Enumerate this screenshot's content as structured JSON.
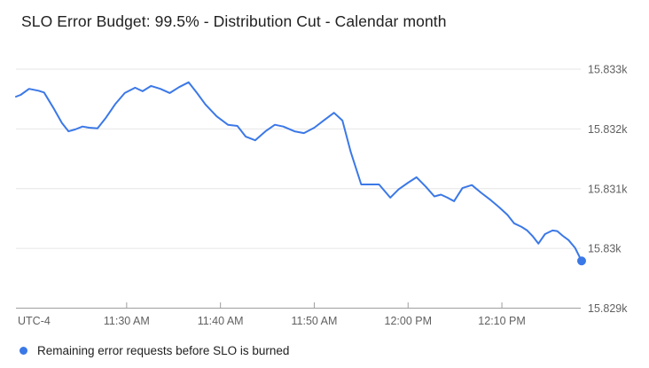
{
  "title": "SLO Error Budget: 99.5% - Distribution Cut - Calendar month",
  "legend": {
    "label": "Remaining error requests before SLO is burned"
  },
  "axes": {
    "timezone_label": "UTC-4",
    "x_ticks": [
      {
        "t": 690,
        "label": "11:30 AM"
      },
      {
        "t": 700,
        "label": "11:40 AM"
      },
      {
        "t": 710,
        "label": "11:50 AM"
      },
      {
        "t": 720,
        "label": "12:00 PM"
      },
      {
        "t": 730,
        "label": "12:10 PM"
      }
    ],
    "y_ticks": [
      {
        "v": 15833,
        "label": "15.833k"
      },
      {
        "v": 15832,
        "label": "15.832k"
      },
      {
        "v": 15831,
        "label": "15.831k"
      },
      {
        "v": 15830,
        "label": "15.83k"
      },
      {
        "v": 15829,
        "label": "15.829k"
      }
    ]
  },
  "colors": {
    "series": "#3b78e7",
    "grid": "#e6e6e6",
    "axis_line": "#9e9e9e",
    "tick": "#9e9e9e",
    "text_primary": "#212121",
    "text_secondary": "#616161"
  },
  "chart_data": {
    "type": "line",
    "title": "SLO Error Budget: 99.5% - Distribution Cut - Calendar month",
    "xlabel": "time (UTC-4)",
    "ylabel": "Remaining error requests",
    "x_unit": "minutes-since-midnight",
    "xlim": [
      678.2,
      738.5
    ],
    "ylim": [
      15829,
      15833
    ],
    "grid": "horizontal",
    "legend_position": "bottom",
    "y_axis_side": "right",
    "series": [
      {
        "name": "Remaining error requests before SLO is burned",
        "endpoint_dot": true,
        "points": [
          [
            678.2,
            15832.54
          ],
          [
            678.7,
            15832.57
          ],
          [
            679.6,
            15832.67
          ],
          [
            680.6,
            15832.64
          ],
          [
            681.2,
            15832.61
          ],
          [
            682.2,
            15832.35
          ],
          [
            683.1,
            15832.1
          ],
          [
            683.8,
            15831.96
          ],
          [
            684.5,
            15831.99
          ],
          [
            685.3,
            15832.04
          ],
          [
            686.0,
            15832.02
          ],
          [
            686.9,
            15832.01
          ],
          [
            687.8,
            15832.19
          ],
          [
            688.8,
            15832.42
          ],
          [
            689.8,
            15832.6
          ],
          [
            690.9,
            15832.69
          ],
          [
            691.7,
            15832.63
          ],
          [
            692.6,
            15832.72
          ],
          [
            693.6,
            15832.67
          ],
          [
            694.6,
            15832.6
          ],
          [
            695.6,
            15832.7
          ],
          [
            696.6,
            15832.78
          ],
          [
            697.5,
            15832.6
          ],
          [
            698.4,
            15832.41
          ],
          [
            699.6,
            15832.21
          ],
          [
            700.8,
            15832.07
          ],
          [
            701.8,
            15832.05
          ],
          [
            702.7,
            15831.87
          ],
          [
            703.7,
            15831.81
          ],
          [
            704.8,
            15831.96
          ],
          [
            705.8,
            15832.07
          ],
          [
            706.7,
            15832.04
          ],
          [
            707.9,
            15831.96
          ],
          [
            708.9,
            15831.93
          ],
          [
            710.0,
            15832.02
          ],
          [
            711.0,
            15832.14
          ],
          [
            712.1,
            15832.27
          ],
          [
            713.0,
            15832.14
          ],
          [
            713.9,
            15831.61
          ],
          [
            715.0,
            15831.07
          ],
          [
            715.9,
            15831.07
          ],
          [
            716.9,
            15831.07
          ],
          [
            717.5,
            15830.96
          ],
          [
            718.1,
            15830.85
          ],
          [
            719.0,
            15830.99
          ],
          [
            720.0,
            15831.1
          ],
          [
            720.9,
            15831.19
          ],
          [
            721.9,
            15831.03
          ],
          [
            722.8,
            15830.87
          ],
          [
            723.5,
            15830.9
          ],
          [
            724.2,
            15830.85
          ],
          [
            724.9,
            15830.79
          ],
          [
            725.8,
            15831.01
          ],
          [
            726.8,
            15831.06
          ],
          [
            727.8,
            15830.93
          ],
          [
            728.8,
            15830.81
          ],
          [
            729.7,
            15830.69
          ],
          [
            730.6,
            15830.56
          ],
          [
            731.3,
            15830.42
          ],
          [
            732.1,
            15830.36
          ],
          [
            732.7,
            15830.3
          ],
          [
            733.3,
            15830.2
          ],
          [
            733.9,
            15830.08
          ],
          [
            734.6,
            15830.24
          ],
          [
            735.4,
            15830.3
          ],
          [
            735.9,
            15830.29
          ],
          [
            736.5,
            15830.21
          ],
          [
            737.1,
            15830.14
          ],
          [
            737.8,
            15830.01
          ],
          [
            738.5,
            15829.79
          ]
        ]
      }
    ]
  }
}
